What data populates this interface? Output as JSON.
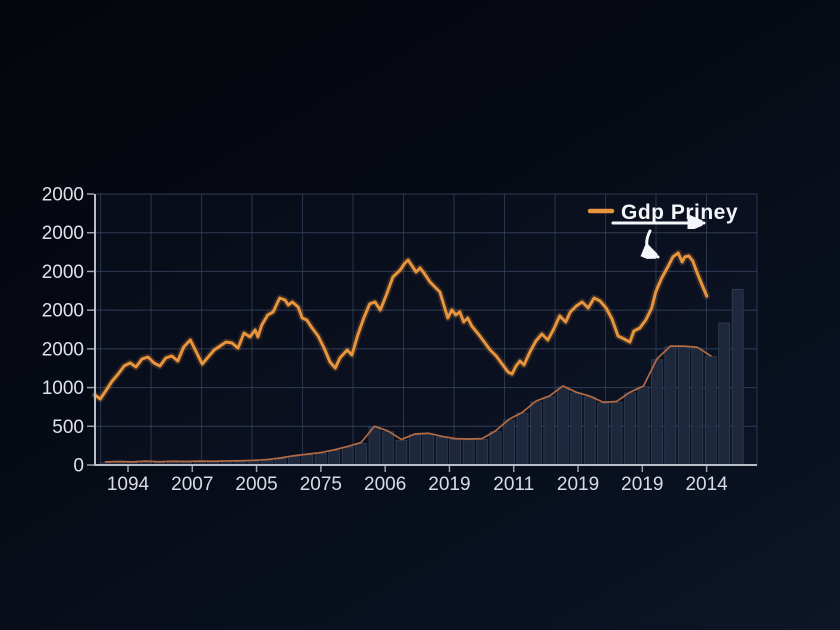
{
  "legend": {
    "label": "Gdp Priney",
    "swatch_color": "#e8953e",
    "position": "top-right"
  },
  "colors": {
    "background": "#070b15",
    "plot_tint": "#141d33",
    "grid": "#3c4a66",
    "axis": "#b9bec9",
    "tick": "#9aa0ae",
    "text": "#dfe2e9",
    "line": "#e8953e",
    "line_glow": "#e8953e",
    "bar_fill": "#202a3e",
    "bar_edge": "#38455f",
    "bar_outline": "#b56b42",
    "arrow": "#f3f5f8"
  },
  "chart_data": {
    "type": "line+bar",
    "title": "",
    "xlabel": "",
    "ylabel": "",
    "grid": true,
    "legend_position": "top-right",
    "ylim": [
      0,
      3500
    ],
    "y_tick_labels": [
      "2000",
      "2000",
      "2000",
      "2000",
      "2000",
      "1000",
      "500",
      "0"
    ],
    "x_tick_labels": [
      "1094",
      "2007",
      "2005",
      "2075",
      "2006",
      "2019",
      "2011",
      "2019",
      "2019",
      "2014"
    ],
    "series": [
      {
        "name": "Gdp Priney",
        "type": "line",
        "color": "#e8953e",
        "points": [
          [
            0.0,
            904
          ],
          [
            0.8,
            853
          ],
          [
            1.7,
            969
          ],
          [
            2.6,
            1085
          ],
          [
            3.5,
            1175
          ],
          [
            4.4,
            1279
          ],
          [
            5.3,
            1318
          ],
          [
            6.2,
            1266
          ],
          [
            7.1,
            1369
          ],
          [
            8.0,
            1395
          ],
          [
            8.9,
            1318
          ],
          [
            9.8,
            1279
          ],
          [
            10.7,
            1382
          ],
          [
            11.6,
            1408
          ],
          [
            12.5,
            1343
          ],
          [
            13.4,
            1524
          ],
          [
            14.4,
            1615
          ],
          [
            15.3,
            1460
          ],
          [
            16.2,
            1305
          ],
          [
            17.1,
            1395
          ],
          [
            18.0,
            1485
          ],
          [
            18.9,
            1537
          ],
          [
            19.8,
            1589
          ],
          [
            20.7,
            1576
          ],
          [
            21.6,
            1511
          ],
          [
            22.5,
            1705
          ],
          [
            23.4,
            1654
          ],
          [
            24.2,
            1744
          ],
          [
            24.6,
            1654
          ],
          [
            25.2,
            1808
          ],
          [
            26.1,
            1938
          ],
          [
            26.9,
            1976
          ],
          [
            27.9,
            2157
          ],
          [
            28.7,
            2131
          ],
          [
            29.2,
            2067
          ],
          [
            29.8,
            2105
          ],
          [
            30.7,
            2041
          ],
          [
            31.3,
            1899
          ],
          [
            32.0,
            1873
          ],
          [
            32.8,
            1770
          ],
          [
            33.7,
            1666
          ],
          [
            34.6,
            1511
          ],
          [
            35.5,
            1330
          ],
          [
            36.3,
            1253
          ],
          [
            37.0,
            1382
          ],
          [
            38.1,
            1485
          ],
          [
            38.8,
            1421
          ],
          [
            39.7,
            1679
          ],
          [
            40.6,
            1899
          ],
          [
            41.5,
            2080
          ],
          [
            42.3,
            2105
          ],
          [
            43.1,
            2002
          ],
          [
            44.0,
            2196
          ],
          [
            45.0,
            2428
          ],
          [
            46.1,
            2519
          ],
          [
            46.7,
            2596
          ],
          [
            47.3,
            2648
          ],
          [
            47.9,
            2570
          ],
          [
            48.5,
            2493
          ],
          [
            49.1,
            2545
          ],
          [
            49.7,
            2480
          ],
          [
            50.6,
            2364
          ],
          [
            51.5,
            2286
          ],
          [
            52.1,
            2234
          ],
          [
            53.3,
            1899
          ],
          [
            53.9,
            2002
          ],
          [
            54.5,
            1938
          ],
          [
            55.1,
            1976
          ],
          [
            55.7,
            1847
          ],
          [
            56.3,
            1899
          ],
          [
            56.9,
            1796
          ],
          [
            57.9,
            1692
          ],
          [
            58.8,
            1589
          ],
          [
            59.7,
            1485
          ],
          [
            60.6,
            1408
          ],
          [
            61.5,
            1305
          ],
          [
            62.4,
            1201
          ],
          [
            63.0,
            1175
          ],
          [
            63.6,
            1279
          ],
          [
            64.2,
            1343
          ],
          [
            64.8,
            1292
          ],
          [
            65.7,
            1460
          ],
          [
            66.6,
            1602
          ],
          [
            67.5,
            1692
          ],
          [
            68.4,
            1615
          ],
          [
            69.3,
            1757
          ],
          [
            70.2,
            1925
          ],
          [
            71.1,
            1847
          ],
          [
            71.8,
            1976
          ],
          [
            72.7,
            2054
          ],
          [
            73.6,
            2105
          ],
          [
            74.5,
            2028
          ],
          [
            75.4,
            2157
          ],
          [
            76.3,
            2118
          ],
          [
            77.2,
            2028
          ],
          [
            78.1,
            1886
          ],
          [
            79.0,
            1666
          ],
          [
            79.9,
            1628
          ],
          [
            80.8,
            1589
          ],
          [
            81.4,
            1731
          ],
          [
            82.3,
            1770
          ],
          [
            83.2,
            1873
          ],
          [
            84.1,
            2028
          ],
          [
            84.7,
            2234
          ],
          [
            85.6,
            2415
          ],
          [
            86.6,
            2570
          ],
          [
            87.3,
            2687
          ],
          [
            88.1,
            2738
          ],
          [
            88.7,
            2622
          ],
          [
            89.1,
            2687
          ],
          [
            89.7,
            2700
          ],
          [
            90.3,
            2635
          ],
          [
            90.9,
            2493
          ],
          [
            91.7,
            2325
          ],
          [
            92.4,
            2183
          ]
        ]
      },
      {
        "name": "volume-bars",
        "type": "bar",
        "color": "#202a3e",
        "values": [
          30,
          35,
          30,
          40,
          32,
          38,
          35,
          40,
          38,
          42,
          45,
          50,
          60,
          80,
          110,
          130,
          150,
          185,
          230,
          280,
          490,
          430,
          320,
          390,
          400,
          360,
          330,
          325,
          330,
          430,
          580,
          670,
          815,
          880,
          1010,
          930,
          880,
          800,
          810,
          930,
          1010,
          1360,
          1525,
          1525,
          1510,
          1400,
          1835,
          2270
        ]
      },
      {
        "name": "bar-top-outline",
        "type": "line",
        "color": "#b56b42",
        "follows": "volume-bars",
        "end_bar_index": 45
      }
    ]
  }
}
